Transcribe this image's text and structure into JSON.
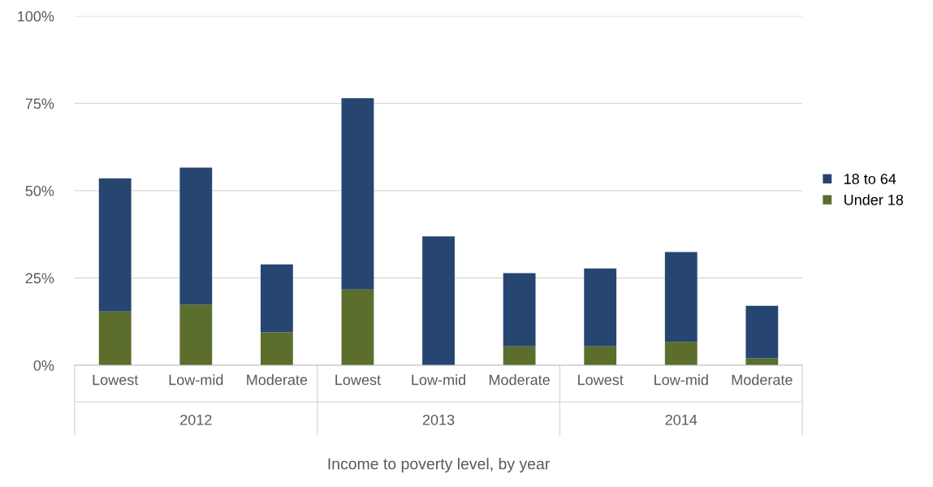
{
  "chart_data": {
    "type": "bar",
    "stacked": true,
    "xlabel": "Income to poverty level, by year",
    "categories": [
      "Lowest",
      "Low-mid",
      "Moderate",
      "Lowest",
      "Low-mid",
      "Moderate",
      "Lowest",
      "Low-mid",
      "Moderate"
    ],
    "annotations": [
      "2012",
      "2013",
      "2014"
    ],
    "series": [
      {
        "name": "Under 18",
        "color": "#5b6e2c",
        "values": [
          15.4,
          17.4,
          9.4,
          21.7,
          0,
          5.4,
          5.4,
          6.7,
          2.0
        ]
      },
      {
        "name": "18 to 64",
        "color": "#264570",
        "values": [
          38.1,
          39.2,
          19.5,
          54.8,
          36.9,
          21.0,
          22.3,
          25.7,
          15.0
        ]
      }
    ],
    "ylim": [
      0,
      100
    ],
    "yticks": [
      {
        "value": 0,
        "label": "0%"
      },
      {
        "value": 25,
        "label": "25%"
      },
      {
        "value": 50,
        "label": "50%"
      },
      {
        "value": 75,
        "label": "75%"
      },
      {
        "value": 100,
        "label": "100%"
      }
    ],
    "grid": "y",
    "legend": "right"
  }
}
